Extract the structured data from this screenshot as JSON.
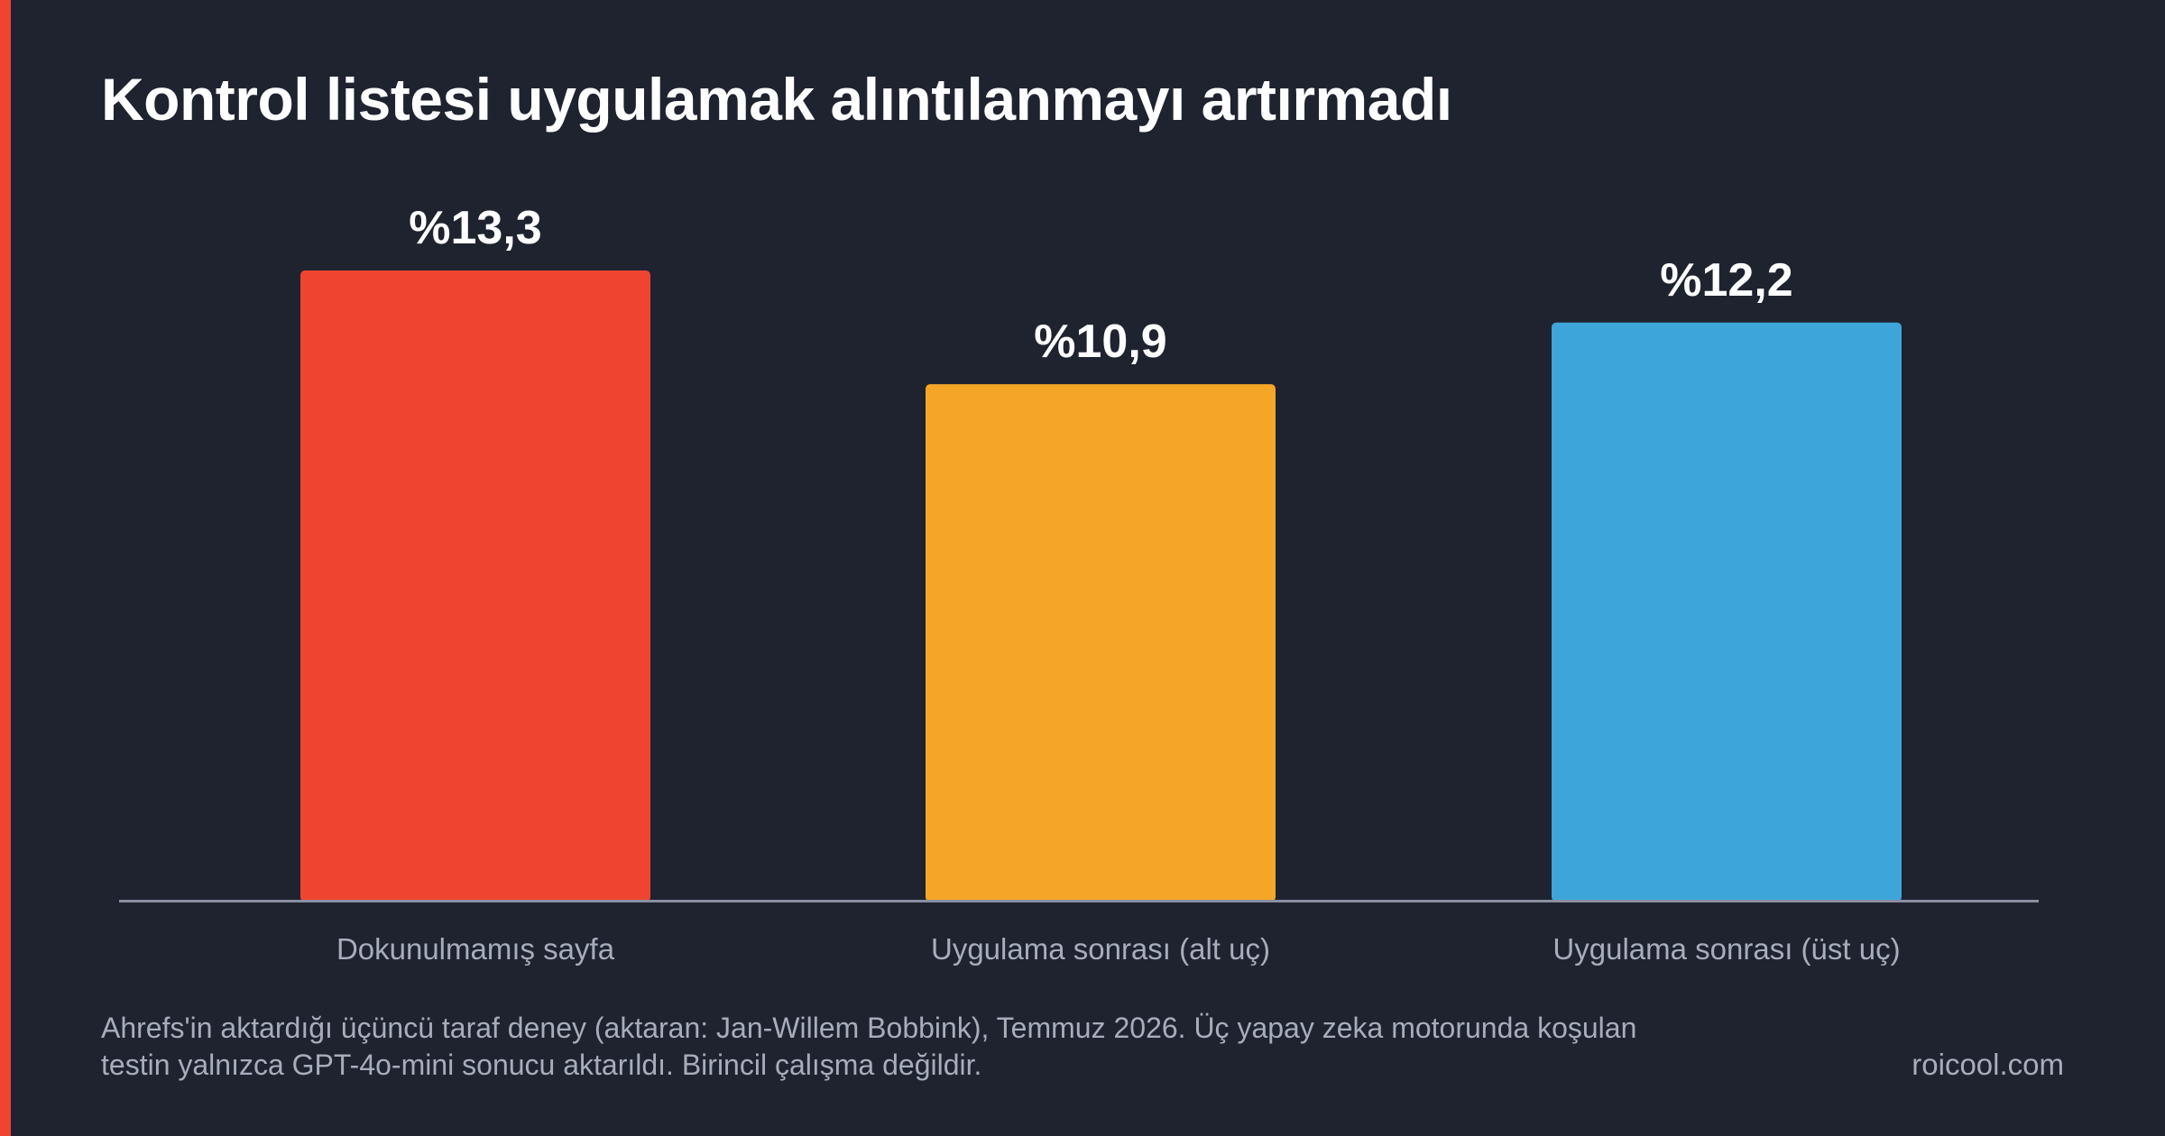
{
  "colors": {
    "background": "#1f2330",
    "accent": "#ef4530",
    "axis": "#8a90a2",
    "muted_text": "#a7adbd",
    "title_text": "#ffffff"
  },
  "chart_data": {
    "type": "bar",
    "title": "Kontrol listesi uygulamak alıntılanmayı artırmadı",
    "xlabel": "",
    "ylabel": "",
    "categories": [
      "Dokunulmamış sayfa",
      "Uygulama sonrası (alt uç)",
      "Uygulama sonrası (üst uç)"
    ],
    "values": [
      13.3,
      10.9,
      12.2
    ],
    "data_labels": [
      "%13,3",
      "%10,9",
      "%12,2"
    ],
    "bar_colors": [
      "#ef4530",
      "#f4a727",
      "#3da5d9"
    ],
    "unit": "%",
    "ylim": [
      0,
      13.3
    ],
    "grid": false,
    "legend": "none"
  },
  "footnote": {
    "lines": [
      "Ahrefs'in aktardığı üçüncü taraf deney (aktaran: Jan-Willem Bobbink), Temmuz 2026. Üç yapay zeka motorunda koşulan",
      "testin yalnızca GPT-4o-mini sonucu aktarıldı. Birincil çalışma değildir."
    ]
  },
  "brand": "roicool.com"
}
